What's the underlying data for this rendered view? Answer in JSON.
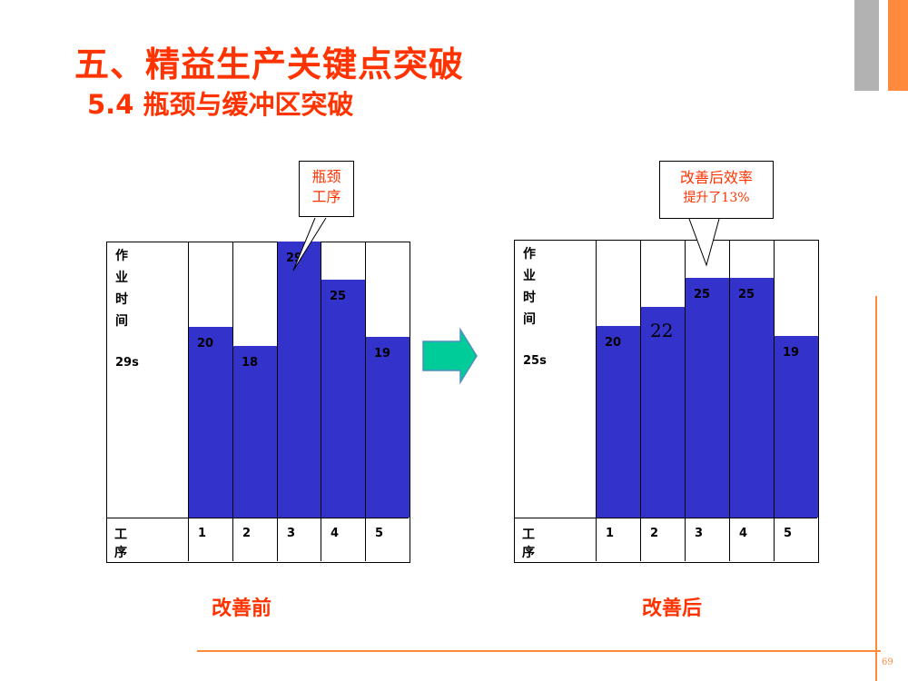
{
  "header": {
    "title": "五、精益生产关键点突破",
    "subtitle": "5.4 瓶颈与缓冲区突破"
  },
  "page_number": "69",
  "colors": {
    "accent": "#ff3300",
    "bar": "#3333cc",
    "arrow": "#00cc99",
    "deco_gray": "#b2b2b2",
    "deco_orange": "#ff8a3d"
  },
  "chart_data": [
    {
      "type": "bar",
      "caption": "改善前",
      "ylabel_chars": [
        "作",
        "业",
        "时",
        "间"
      ],
      "takt": "29s",
      "xlabel": "工序",
      "categories": [
        "1",
        "2",
        "3",
        "4",
        "5"
      ],
      "values": [
        20,
        18,
        29,
        25,
        19
      ],
      "value_labels": [
        "20",
        "18",
        "29",
        "25",
        "19"
      ],
      "ylim": [
        0,
        29
      ],
      "callout": {
        "lines": [
          "瓶颈",
          "工序"
        ],
        "target": "3"
      }
    },
    {
      "type": "bar",
      "caption": "改善后",
      "ylabel_chars": [
        "作",
        "业",
        "时",
        "间"
      ],
      "takt": "25s",
      "xlabel": "工序",
      "categories": [
        "1",
        "2",
        "3",
        "4",
        "5"
      ],
      "values": [
        20,
        22,
        25,
        25,
        19
      ],
      "value_labels": [
        "20",
        "22",
        "25",
        "25",
        "19"
      ],
      "ylim": [
        0,
        29
      ],
      "callout": {
        "lines": [
          "改善后效率",
          "提升了13%"
        ],
        "target": "3"
      }
    }
  ],
  "arrow_icon": "right-arrow-icon"
}
